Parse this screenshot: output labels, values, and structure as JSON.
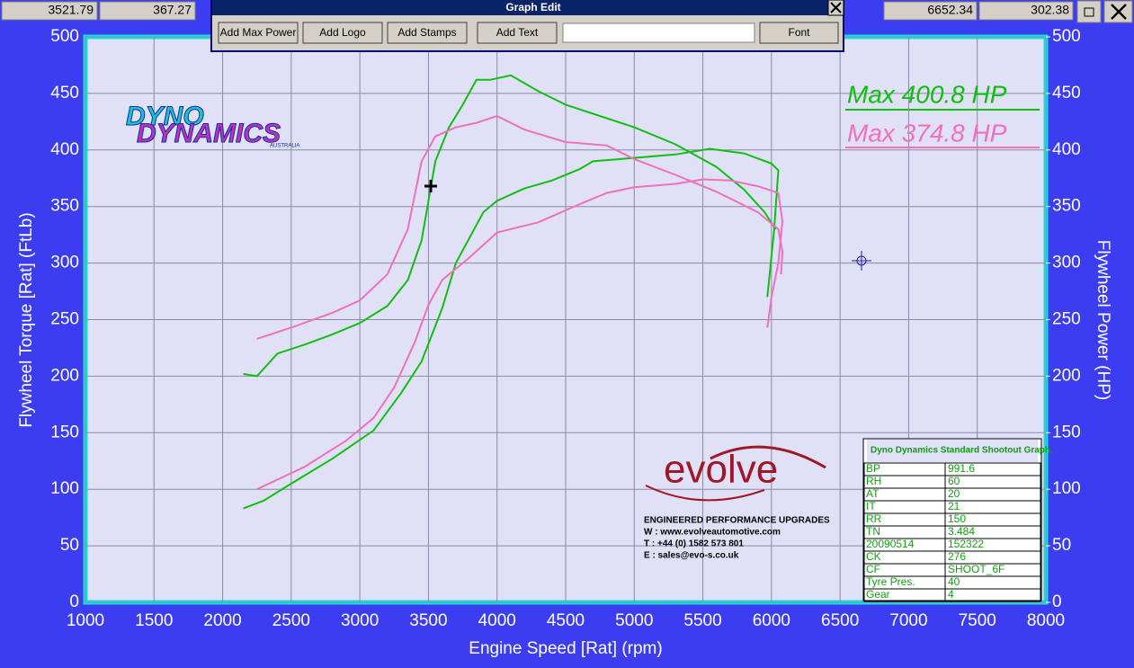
{
  "readouts": {
    "left": [
      "3521.79",
      "367.27"
    ],
    "right": [
      "6652.34",
      "302.38"
    ]
  },
  "dialog": {
    "title": "Graph Edit",
    "buttons": [
      "Add Max Power",
      "Add Logo",
      "Add Stamps",
      "Add Text",
      "Font"
    ]
  },
  "logo": {
    "line1": "DYNO",
    "line2": "DYNAMICS",
    "sub": "AUSTRALIA"
  },
  "max_labels": [
    "Max 400.8 HP",
    "Max 374.8 HP"
  ],
  "evolve": {
    "name": "evolve",
    "tagline": "ENGINEERED PERFORMANCE UPGRADES",
    "lines": [
      "W : www.evolveautomotive.com",
      "T : +44 (0) 1582 573 801",
      "E : sales@evo-s.co.uk"
    ]
  },
  "info": {
    "title": "Dyno Dynamics Standard Shootout Graph.",
    "rows": [
      [
        "BP",
        "991.6"
      ],
      [
        "RH",
        "60"
      ],
      [
        "AT",
        "20"
      ],
      [
        "IT",
        "21"
      ],
      [
        "RR",
        "150"
      ],
      [
        "TN",
        "3.484"
      ],
      [
        "20090514",
        "152322"
      ],
      [
        "CK",
        "276"
      ],
      [
        "CF",
        "SHOOT_6F"
      ],
      [
        "Tyre Pres.",
        "40"
      ],
      [
        "Gear",
        "4"
      ]
    ]
  },
  "chart_data": {
    "type": "line",
    "x_label": "Engine Speed [Rat] (rpm)",
    "y_label": "Flywheel Torque [Rat] (FtLb)",
    "y2_label": "Flywheel Power (HP)",
    "xlim": [
      1000,
      8000
    ],
    "xticks": [
      1000,
      1500,
      2000,
      2500,
      3000,
      3500,
      4000,
      4500,
      5000,
      5500,
      6000,
      6500,
      7000,
      7500,
      8000
    ],
    "ylim": [
      0,
      500
    ],
    "yticks": [
      0,
      50,
      100,
      150,
      200,
      250,
      300,
      350,
      400,
      450,
      500
    ],
    "y2lim": [
      0,
      500
    ],
    "y2ticks": [
      0,
      50,
      100,
      150,
      200,
      250,
      300,
      350,
      400,
      450,
      500
    ],
    "grid": true,
    "series": [
      {
        "color": "#10c010",
        "x": [
          2150,
          2250,
          2400,
          2600,
          2800,
          3000,
          3200,
          3350,
          3450,
          3550,
          3650,
          3750,
          3850,
          3950,
          4100,
          4300,
          4500,
          4700,
          5000,
          5300,
          5600,
          5800,
          5950,
          6030
        ],
        "values": [
          202,
          200,
          220,
          228,
          237,
          247,
          262,
          285,
          320,
          390,
          420,
          440,
          462,
          462,
          466,
          452,
          440,
          432,
          420,
          405,
          385,
          365,
          345,
          330
        ]
      },
      {
        "color": "#10c010",
        "x": [
          2150,
          2300,
          2500,
          2800,
          3100,
          3300,
          3450,
          3600,
          3700,
          3900,
          4000,
          4200,
          4400,
          4600,
          4700,
          5000,
          5300,
          5550,
          5800,
          6000,
          6050,
          6020,
          5970
        ],
        "values": [
          83,
          90,
          105,
          127,
          152,
          185,
          213,
          260,
          300,
          345,
          355,
          366,
          373,
          383,
          390,
          393,
          396,
          401,
          397,
          388,
          382,
          330,
          270
        ]
      },
      {
        "color": "#f070c0",
        "x": [
          2250,
          2500,
          2800,
          3000,
          3200,
          3350,
          3450,
          3550,
          3700,
          3850,
          4000,
          4200,
          4500,
          4800,
          5000,
          5300,
          5600,
          5900,
          6050,
          6080,
          6070
        ],
        "values": [
          233,
          243,
          256,
          267,
          290,
          330,
          390,
          412,
          420,
          424,
          430,
          418,
          407,
          404,
          392,
          378,
          363,
          345,
          330,
          310,
          290
        ]
      },
      {
        "color": "#f070c0",
        "x": [
          2250,
          2600,
          2900,
          3100,
          3250,
          3400,
          3500,
          3600,
          3800,
          4000,
          4300,
          4600,
          4800,
          5000,
          5300,
          5500,
          5700,
          5900,
          6050,
          6080,
          6050,
          6000,
          5970
        ],
        "values": [
          100,
          120,
          143,
          163,
          190,
          230,
          263,
          285,
          305,
          327,
          336,
          352,
          362,
          367,
          370,
          374,
          373,
          368,
          362,
          337,
          300,
          270,
          243
        ]
      }
    ]
  }
}
